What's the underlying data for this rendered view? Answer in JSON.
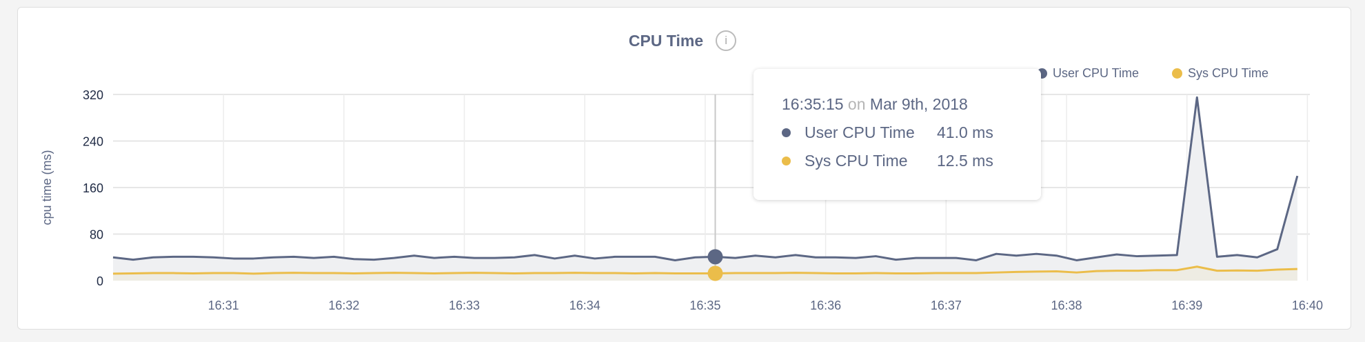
{
  "title": "CPU Time",
  "info_icon": "info-icon",
  "legend": [
    {
      "label": "User CPU Time",
      "color": "#5c6784"
    },
    {
      "label": "Sys CPU Time",
      "color": "#ebbd4a"
    }
  ],
  "tooltip": {
    "time": "16:35:15",
    "on": "on",
    "date": "Mar 9th, 2018",
    "rows": [
      {
        "label": "User CPU Time",
        "value": "41.0 ms",
        "color": "#5c6784"
      },
      {
        "label": "Sys CPU Time",
        "value": "12.5 ms",
        "color": "#ebbd4a"
      }
    ]
  },
  "chart_data": {
    "type": "area",
    "title": "CPU Time",
    "xlabel": "",
    "ylabel": "cpu time (ms)",
    "ylim": [
      0,
      320
    ],
    "yticks": [
      0,
      80,
      160,
      240,
      320
    ],
    "xticks": [
      "16:31",
      "16:32",
      "16:33",
      "16:34",
      "16:35",
      "16:36",
      "16:37",
      "16:38",
      "16:39",
      "16:40"
    ],
    "grid": true,
    "legend_position": "top-right",
    "x": [
      "16:30:15",
      "16:30:25",
      "16:30:35",
      "16:30:45",
      "16:30:55",
      "16:31:05",
      "16:31:15",
      "16:31:25",
      "16:31:35",
      "16:31:45",
      "16:31:55",
      "16:32:05",
      "16:32:15",
      "16:32:25",
      "16:32:35",
      "16:32:45",
      "16:32:55",
      "16:33:05",
      "16:33:15",
      "16:33:25",
      "16:33:35",
      "16:33:45",
      "16:33:55",
      "16:34:05",
      "16:34:15",
      "16:34:25",
      "16:34:35",
      "16:34:45",
      "16:34:55",
      "16:35:05",
      "16:35:15",
      "16:35:25",
      "16:35:35",
      "16:35:45",
      "16:35:55",
      "16:36:05",
      "16:36:15",
      "16:36:25",
      "16:36:35",
      "16:36:45",
      "16:36:55",
      "16:37:05",
      "16:37:15",
      "16:37:25",
      "16:37:35",
      "16:37:45",
      "16:37:55",
      "16:38:05",
      "16:38:15",
      "16:38:25",
      "16:38:35",
      "16:38:45",
      "16:38:55",
      "16:39:05",
      "16:39:15",
      "16:39:25",
      "16:39:35",
      "16:39:45",
      "16:39:55",
      "16:40:05"
    ],
    "series": [
      {
        "name": "User CPU Time",
        "color": "#5c6784",
        "values": [
          40,
          36,
          40,
          41,
          41,
          40,
          38,
          38,
          40,
          41,
          39,
          41,
          37,
          36,
          39,
          43,
          39,
          41,
          39,
          39,
          40,
          44,
          38,
          43,
          38,
          41,
          41,
          41,
          35,
          40,
          41,
          39,
          43,
          40,
          44,
          40,
          40,
          39,
          42,
          36,
          39,
          39,
          39,
          35,
          46,
          43,
          46,
          43,
          35,
          40,
          45,
          42,
          43,
          44,
          315,
          41,
          44,
          40,
          54,
          180
        ]
      },
      {
        "name": "Sys CPU Time",
        "color": "#ebbd4a",
        "values": [
          12,
          12.5,
          13,
          13,
          12.5,
          13,
          13,
          12,
          13,
          13.5,
          13,
          13,
          12.5,
          13,
          13.5,
          13,
          12.5,
          13,
          13.5,
          13,
          12.5,
          13,
          13,
          13.5,
          13,
          13,
          12.5,
          13,
          12.5,
          12.5,
          12.5,
          13,
          13,
          13,
          13.5,
          13,
          12.5,
          12.5,
          13,
          12.5,
          12.5,
          13,
          13,
          13,
          14,
          15,
          15.5,
          16,
          14,
          16.5,
          17,
          17,
          18,
          18,
          24,
          17,
          17.5,
          17,
          19,
          20
        ]
      }
    ],
    "highlight": {
      "x": "16:35:15",
      "user": 41.0,
      "sys": 12.5
    }
  }
}
